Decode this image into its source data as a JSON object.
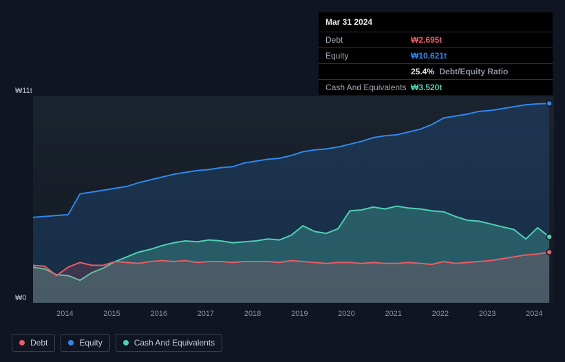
{
  "tooltip": {
    "date": "Mar 31 2024",
    "rows": {
      "debt": {
        "label": "Debt",
        "value": "₩2.695t"
      },
      "equity": {
        "label": "Equity",
        "value": "₩10.621t"
      },
      "ratio": {
        "value": "25.4%",
        "label": "Debt/Equity Ratio"
      },
      "cash": {
        "label": "Cash And Equivalents",
        "value": "₩3.520t"
      }
    }
  },
  "chart": {
    "type": "area",
    "background_color": "#0f1621",
    "plot_background_gradient": {
      "from": "#1b232e",
      "to": "#121922"
    },
    "xlim": [
      2013.5,
      2024.6
    ],
    "ylim": [
      0,
      11
    ],
    "y_ticks": [
      {
        "v": 0,
        "label": "₩0"
      },
      {
        "v": 11,
        "label": "₩11t"
      }
    ],
    "x_ticks": [
      "2014",
      "2015",
      "2016",
      "2017",
      "2018",
      "2019",
      "2020",
      "2021",
      "2022",
      "2023",
      "2024"
    ],
    "label_color": "#b8c0cc",
    "tick_color": "#8b94a3",
    "label_fontsize": 11,
    "series": {
      "equity": {
        "label": "Equity",
        "color": "#2f88ef",
        "fill_opacity": 0.18,
        "line_width": 2,
        "data": [
          [
            2013.5,
            4.55
          ],
          [
            2013.75,
            4.6
          ],
          [
            2014.0,
            4.65
          ],
          [
            2014.25,
            4.7
          ],
          [
            2014.5,
            5.8
          ],
          [
            2014.75,
            5.9
          ],
          [
            2015.0,
            6.0
          ],
          [
            2015.25,
            6.1
          ],
          [
            2015.5,
            6.2
          ],
          [
            2015.75,
            6.4
          ],
          [
            2016.0,
            6.55
          ],
          [
            2016.25,
            6.7
          ],
          [
            2016.5,
            6.85
          ],
          [
            2016.75,
            6.95
          ],
          [
            2017.0,
            7.05
          ],
          [
            2017.25,
            7.1
          ],
          [
            2017.5,
            7.2
          ],
          [
            2017.75,
            7.25
          ],
          [
            2018.0,
            7.45
          ],
          [
            2018.25,
            7.55
          ],
          [
            2018.5,
            7.65
          ],
          [
            2018.75,
            7.7
          ],
          [
            2019.0,
            7.85
          ],
          [
            2019.25,
            8.05
          ],
          [
            2019.5,
            8.15
          ],
          [
            2019.75,
            8.2
          ],
          [
            2020.0,
            8.3
          ],
          [
            2020.25,
            8.45
          ],
          [
            2020.5,
            8.6
          ],
          [
            2020.75,
            8.8
          ],
          [
            2021.0,
            8.9
          ],
          [
            2021.25,
            8.95
          ],
          [
            2021.5,
            9.1
          ],
          [
            2021.75,
            9.25
          ],
          [
            2022.0,
            9.5
          ],
          [
            2022.25,
            9.85
          ],
          [
            2022.5,
            9.95
          ],
          [
            2022.75,
            10.05
          ],
          [
            2023.0,
            10.2
          ],
          [
            2023.25,
            10.25
          ],
          [
            2023.5,
            10.35
          ],
          [
            2023.75,
            10.45
          ],
          [
            2024.0,
            10.55
          ],
          [
            2024.25,
            10.6
          ],
          [
            2024.5,
            10.62
          ]
        ]
      },
      "cash": {
        "label": "Cash And Equivalents",
        "color": "#4ed1b3",
        "fill_opacity": 0.28,
        "line_width": 2,
        "data": [
          [
            2013.5,
            1.9
          ],
          [
            2013.75,
            1.8
          ],
          [
            2014.0,
            1.5
          ],
          [
            2014.25,
            1.45
          ],
          [
            2014.5,
            1.2
          ],
          [
            2014.75,
            1.6
          ],
          [
            2015.0,
            1.85
          ],
          [
            2015.25,
            2.2
          ],
          [
            2015.5,
            2.45
          ],
          [
            2015.75,
            2.7
          ],
          [
            2016.0,
            2.85
          ],
          [
            2016.25,
            3.05
          ],
          [
            2016.5,
            3.2
          ],
          [
            2016.75,
            3.3
          ],
          [
            2017.0,
            3.25
          ],
          [
            2017.25,
            3.35
          ],
          [
            2017.5,
            3.3
          ],
          [
            2017.75,
            3.2
          ],
          [
            2018.0,
            3.25
          ],
          [
            2018.25,
            3.3
          ],
          [
            2018.5,
            3.4
          ],
          [
            2018.75,
            3.35
          ],
          [
            2019.0,
            3.6
          ],
          [
            2019.25,
            4.1
          ],
          [
            2019.5,
            3.8
          ],
          [
            2019.75,
            3.7
          ],
          [
            2020.0,
            3.95
          ],
          [
            2020.25,
            4.9
          ],
          [
            2020.5,
            4.95
          ],
          [
            2020.75,
            5.1
          ],
          [
            2021.0,
            5.0
          ],
          [
            2021.25,
            5.15
          ],
          [
            2021.5,
            5.05
          ],
          [
            2021.75,
            5.0
          ],
          [
            2022.0,
            4.9
          ],
          [
            2022.25,
            4.85
          ],
          [
            2022.5,
            4.6
          ],
          [
            2022.75,
            4.4
          ],
          [
            2023.0,
            4.35
          ],
          [
            2023.25,
            4.2
          ],
          [
            2023.5,
            4.05
          ],
          [
            2023.75,
            3.9
          ],
          [
            2024.0,
            3.4
          ],
          [
            2024.25,
            4.0
          ],
          [
            2024.5,
            3.52
          ]
        ]
      },
      "debt": {
        "label": "Debt",
        "color": "#e85d68",
        "fill_opacity": 0.18,
        "line_width": 2,
        "data": [
          [
            2013.5,
            2.0
          ],
          [
            2013.75,
            1.95
          ],
          [
            2014.0,
            1.45
          ],
          [
            2014.25,
            1.9
          ],
          [
            2014.5,
            2.15
          ],
          [
            2014.75,
            2.0
          ],
          [
            2015.0,
            2.0
          ],
          [
            2015.25,
            2.2
          ],
          [
            2015.5,
            2.15
          ],
          [
            2015.75,
            2.1
          ],
          [
            2016.0,
            2.2
          ],
          [
            2016.25,
            2.25
          ],
          [
            2016.5,
            2.2
          ],
          [
            2016.75,
            2.25
          ],
          [
            2017.0,
            2.15
          ],
          [
            2017.25,
            2.2
          ],
          [
            2017.5,
            2.2
          ],
          [
            2017.75,
            2.15
          ],
          [
            2018.0,
            2.2
          ],
          [
            2018.25,
            2.2
          ],
          [
            2018.5,
            2.2
          ],
          [
            2018.75,
            2.15
          ],
          [
            2019.0,
            2.25
          ],
          [
            2019.25,
            2.2
          ],
          [
            2019.5,
            2.15
          ],
          [
            2019.75,
            2.1
          ],
          [
            2020.0,
            2.15
          ],
          [
            2020.25,
            2.15
          ],
          [
            2020.5,
            2.1
          ],
          [
            2020.75,
            2.15
          ],
          [
            2021.0,
            2.1
          ],
          [
            2021.25,
            2.1
          ],
          [
            2021.5,
            2.15
          ],
          [
            2021.75,
            2.1
          ],
          [
            2022.0,
            2.05
          ],
          [
            2022.25,
            2.2
          ],
          [
            2022.5,
            2.1
          ],
          [
            2022.75,
            2.15
          ],
          [
            2023.0,
            2.2
          ],
          [
            2023.25,
            2.25
          ],
          [
            2023.5,
            2.35
          ],
          [
            2023.75,
            2.45
          ],
          [
            2024.0,
            2.55
          ],
          [
            2024.25,
            2.6
          ],
          [
            2024.5,
            2.7
          ]
        ]
      }
    },
    "end_markers": true
  },
  "legend": {
    "border_color": "#3a4352",
    "text_color": "#c5ccd7",
    "items": [
      {
        "key": "debt",
        "label": "Debt",
        "color": "#e85d68"
      },
      {
        "key": "equity",
        "label": "Equity",
        "color": "#2f88ef"
      },
      {
        "key": "cash",
        "label": "Cash And Equivalents",
        "color": "#4ed1b3"
      }
    ]
  }
}
